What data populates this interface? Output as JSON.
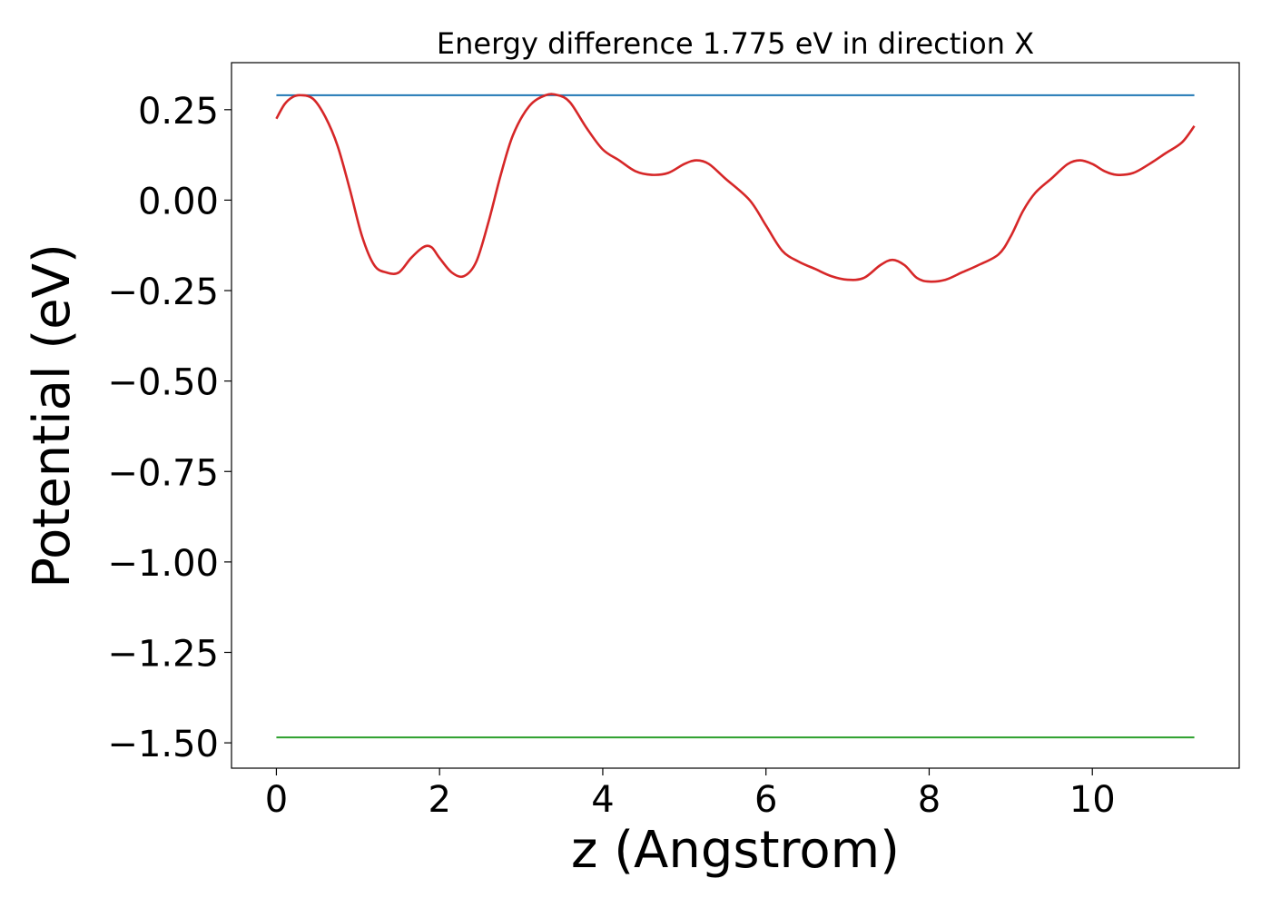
{
  "chart_data": {
    "type": "line",
    "title": "Energy difference 1.775 eV in direction X",
    "xlabel": "z (Angstrom)",
    "ylabel": "Potential (eV)",
    "xlim": [
      -0.55,
      11.8
    ],
    "ylim": [
      -1.57,
      0.38
    ],
    "x_ticks": [
      0,
      2,
      4,
      6,
      8,
      10
    ],
    "x_tick_labels": [
      "0",
      "2",
      "4",
      "6",
      "8",
      "10"
    ],
    "y_ticks": [
      0.25,
      0.0,
      -0.25,
      -0.5,
      -0.75,
      -1.0,
      -1.25,
      -1.5
    ],
    "y_tick_labels": [
      "0.25",
      "0.00",
      "−0.25",
      "−0.50",
      "−0.75",
      "−1.00",
      "−1.25",
      "−1.50"
    ],
    "grid": false,
    "series": [
      {
        "color": "#1f77b4",
        "x": [
          0,
          11.25
        ],
        "y": [
          0.29,
          0.29
        ]
      },
      {
        "color": "#2ca02c",
        "x": [
          0,
          11.25
        ],
        "y": [
          -1.485,
          -1.485
        ]
      },
      {
        "color": "#d62728",
        "x": [
          0,
          0.1,
          0.2,
          0.3,
          0.45,
          0.6,
          0.75,
          0.9,
          1.05,
          1.2,
          1.35,
          1.5,
          1.65,
          1.8,
          1.9,
          2.0,
          2.15,
          2.3,
          2.45,
          2.6,
          2.75,
          2.9,
          3.1,
          3.3,
          3.45,
          3.6,
          3.8,
          4.0,
          4.2,
          4.4,
          4.6,
          4.8,
          5.0,
          5.15,
          5.3,
          5.5,
          5.8,
          6.0,
          6.2,
          6.4,
          6.6,
          6.8,
          7.0,
          7.2,
          7.4,
          7.55,
          7.7,
          7.85,
          8.0,
          8.2,
          8.4,
          8.6,
          8.85,
          9.0,
          9.15,
          9.3,
          9.5,
          9.7,
          9.85,
          10.0,
          10.15,
          10.3,
          10.5,
          10.7,
          10.9,
          11.1,
          11.25
        ],
        "y": [
          0.225,
          0.265,
          0.285,
          0.29,
          0.28,
          0.23,
          0.15,
          0.03,
          -0.1,
          -0.18,
          -0.2,
          -0.2,
          -0.16,
          -0.13,
          -0.13,
          -0.16,
          -0.2,
          -0.21,
          -0.17,
          -0.06,
          0.07,
          0.18,
          0.26,
          0.29,
          0.29,
          0.27,
          0.2,
          0.14,
          0.11,
          0.08,
          0.07,
          0.075,
          0.1,
          0.11,
          0.1,
          0.06,
          0.0,
          -0.07,
          -0.14,
          -0.17,
          -0.19,
          -0.21,
          -0.22,
          -0.215,
          -0.18,
          -0.165,
          -0.18,
          -0.215,
          -0.225,
          -0.22,
          -0.2,
          -0.18,
          -0.15,
          -0.1,
          -0.03,
          0.02,
          0.06,
          0.1,
          0.11,
          0.1,
          0.08,
          0.07,
          0.075,
          0.1,
          0.13,
          0.16,
          0.205
        ]
      }
    ]
  }
}
